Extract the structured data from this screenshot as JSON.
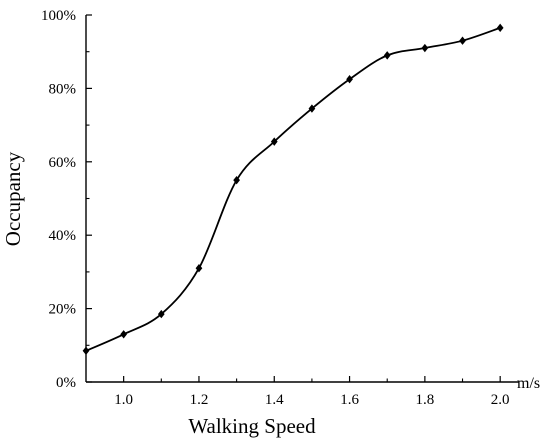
{
  "chart_data": {
    "type": "line",
    "title": "",
    "xlabel": "Walking Speed",
    "ylabel": "Occupancy",
    "x_unit": "m/s",
    "xlim": [
      0.9,
      2.05
    ],
    "ylim": [
      0,
      100
    ],
    "x_ticks": [
      1.0,
      1.2,
      1.4,
      1.6,
      1.8,
      2.0
    ],
    "x_tick_labels": [
      "1.0",
      "1.2",
      "1.4",
      "1.6",
      "1.8",
      "2.0"
    ],
    "y_ticks": [
      0,
      20,
      40,
      60,
      80,
      100
    ],
    "y_tick_labels": [
      "0%",
      "20%",
      "40%",
      "60%",
      "80%",
      "100%"
    ],
    "grid": false,
    "legend": "none",
    "series": [
      {
        "x": [
          0.9,
          1.0,
          1.1,
          1.2,
          1.3,
          1.4,
          1.5,
          1.6,
          1.7,
          1.8,
          1.9,
          2.0
        ],
        "y": [
          8.5,
          13.0,
          18.5,
          31.0,
          55.0,
          65.5,
          74.5,
          82.5,
          89.0,
          91.0,
          93.0,
          96.5
        ],
        "color": "#000000",
        "marker": "diamond"
      }
    ]
  }
}
